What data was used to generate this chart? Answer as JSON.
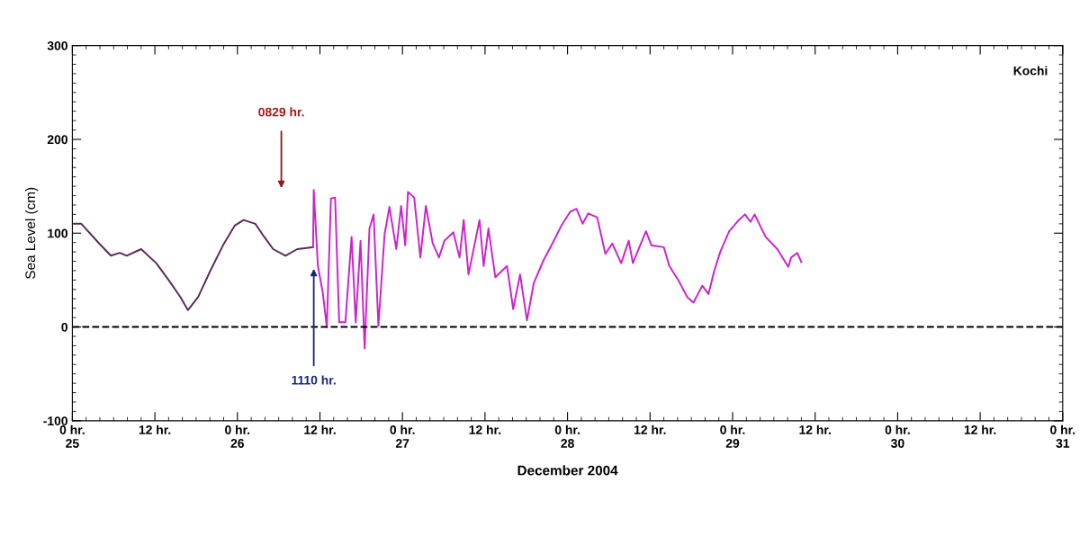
{
  "chart_data": {
    "type": "line",
    "xlabel": "December 2004",
    "ylabel": "Sea Level (cm)",
    "xlim": [
      "2004-12-25T00:00",
      "2004-12-31T00:00"
    ],
    "ylim": [
      -100,
      300
    ],
    "xticks": [
      {
        "value": "2004-12-25T00:00",
        "label": "0 hr.\n25"
      },
      {
        "value": "2004-12-25T12:00",
        "label": "12 hr."
      },
      {
        "value": "2004-12-26T00:00",
        "label": "0 hr.\n26"
      },
      {
        "value": "2004-12-26T12:00",
        "label": "12 hr."
      },
      {
        "value": "2004-12-27T00:00",
        "label": "0 hr.\n27"
      },
      {
        "value": "2004-12-27T12:00",
        "label": "12 hr."
      },
      {
        "value": "2004-12-28T00:00",
        "label": "0 hr.\n28"
      },
      {
        "value": "2004-12-28T12:00",
        "label": "12 hr."
      },
      {
        "value": "2004-12-29T00:00",
        "label": "0 hr.\n29"
      },
      {
        "value": "2004-12-29T12:00",
        "label": "12 hr."
      },
      {
        "value": "2004-12-30T00:00",
        "label": "0 hr.\n30"
      },
      {
        "value": "2004-12-30T12:00",
        "label": "12 hr."
      },
      {
        "value": "2004-12-31T00:00",
        "label": "0 hr.\n31"
      }
    ],
    "yticks": [
      -100,
      0,
      100,
      200,
      300
    ],
    "grid": false,
    "legend": false,
    "marker": "none",
    "line_style": "solid",
    "series": [
      {
        "color": "#5a2a5a",
        "x": [
          "2004-12-25T00:18",
          "2004-12-25T01:18",
          "2004-12-25T03:54",
          "2004-12-25T05:36",
          "2004-12-25T06:54",
          "2004-12-25T07:54",
          "2004-12-25T10:00",
          "2004-12-25T12:12",
          "2004-12-25T14:00",
          "2004-12-25T15:42",
          "2004-12-25T16:48",
          "2004-12-25T18:18",
          "2004-12-25T20:00",
          "2004-12-25T21:54",
          "2004-12-25T23:36",
          "2004-12-26T00:54",
          "2004-12-26T02:36",
          "2004-12-26T03:54",
          "2004-12-26T05:12",
          "2004-12-26T07:00",
          "2004-12-26T08:42",
          "2004-12-26T11:00"
        ],
        "values": [
          110,
          110,
          89,
          76,
          79,
          76,
          83,
          68,
          50,
          32,
          18,
          32,
          59,
          87,
          108,
          114,
          110,
          96,
          83,
          76,
          83,
          85
        ]
      },
      {
        "color": "#cc22cc",
        "x": [
          "2004-12-26T11:00",
          "2004-12-26T11:06",
          "2004-12-26T11:42",
          "2004-12-26T12:24",
          "2004-12-26T13:00",
          "2004-12-26T13:36",
          "2004-12-26T14:12",
          "2004-12-26T14:48",
          "2004-12-26T15:42",
          "2004-12-26T16:36",
          "2004-12-26T17:12",
          "2004-12-26T17:54",
          "2004-12-26T18:30",
          "2004-12-26T19:12",
          "2004-12-26T19:48",
          "2004-12-26T20:30",
          "2004-12-26T21:24",
          "2004-12-26T22:06",
          "2004-12-26T23:06",
          "2004-12-26T23:48",
          "2004-12-27T00:24",
          "2004-12-27T00:48",
          "2004-12-27T01:42",
          "2004-12-27T02:36",
          "2004-12-27T03:24",
          "2004-12-27T04:24",
          "2004-12-27T05:18",
          "2004-12-27T06:06",
          "2004-12-27T07:24",
          "2004-12-27T08:18",
          "2004-12-27T08:54",
          "2004-12-27T09:36",
          "2004-12-27T11:12",
          "2004-12-27T11:48",
          "2004-12-27T12:30",
          "2004-12-27T13:30",
          "2004-12-27T15:12",
          "2004-12-27T16:06",
          "2004-12-27T17:06",
          "2004-12-27T18:06",
          "2004-12-27T19:06",
          "2004-12-27T20:30",
          "2004-12-27T21:48",
          "2004-12-27T23:06",
          "2004-12-28T00:24",
          "2004-12-28T01:18",
          "2004-12-28T02:12",
          "2004-12-28T03:00",
          "2004-12-28T04:18",
          "2004-12-28T05:30",
          "2004-12-28T06:30",
          "2004-12-28T07:48",
          "2004-12-28T08:54",
          "2004-12-28T09:30",
          "2004-12-28T11:24",
          "2004-12-28T12:12",
          "2004-12-28T14:00",
          "2004-12-28T14:48",
          "2004-12-28T16:06",
          "2004-12-28T17:24",
          "2004-12-28T18:18",
          "2004-12-28T19:36",
          "2004-12-28T20:30",
          "2004-12-28T21:18",
          "2004-12-28T22:12",
          "2004-12-28T23:30",
          "2004-12-29T00:54",
          "2004-12-29T01:48",
          "2004-12-29T02:36",
          "2004-12-29T03:12",
          "2004-12-29T04:48",
          "2004-12-29T06:30",
          "2004-12-29T08:06",
          "2004-12-29T08:30",
          "2004-12-29T09:24",
          "2004-12-29T10:00"
        ],
        "values": [
          85,
          146,
          65,
          37,
          0,
          137,
          138,
          5,
          5,
          96,
          5,
          92,
          -23,
          105,
          120,
          1,
          99,
          128,
          83,
          129,
          87,
          144,
          138,
          74,
          129,
          89,
          74,
          92,
          101,
          74,
          114,
          56,
          114,
          65,
          105,
          53,
          65,
          19,
          56,
          7,
          47,
          71,
          89,
          108,
          123,
          126,
          110,
          121,
          117,
          78,
          89,
          68,
          92,
          68,
          102,
          87,
          85,
          65,
          50,
          32,
          26,
          44,
          35,
          59,
          80,
          102,
          114,
          120,
          112,
          120,
          96,
          83,
          64,
          74,
          79,
          69
        ]
      }
    ],
    "ref_lines": [
      {
        "axis": "y",
        "value": 0,
        "color": "#000000",
        "line_style": "dashed"
      }
    ],
    "annotations": [
      "0829 hr.",
      {
        "text": "1110 hr.",
        "x": "2004-12-26T11:06",
        "y": 62
      },
      "Kochi"
    ]
  }
}
